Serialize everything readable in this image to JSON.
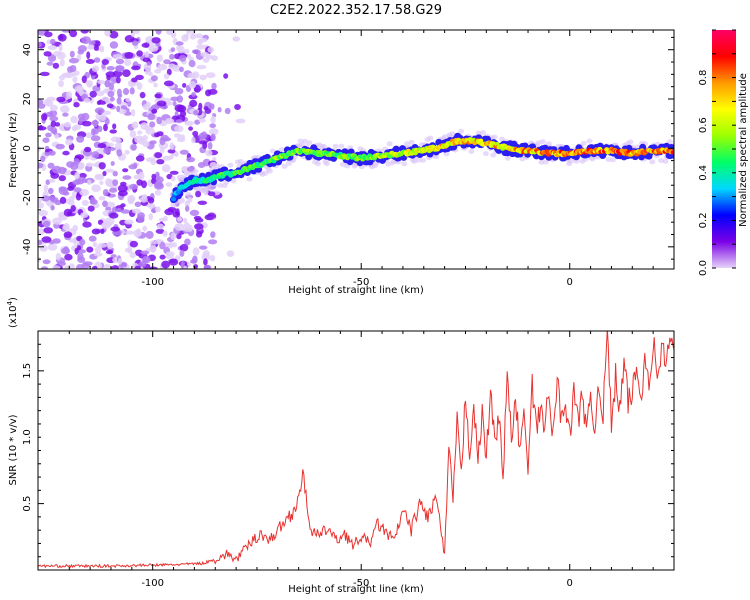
{
  "title": "C2E2.2022.352.17.58.G29",
  "colors": {
    "snr_line": "#e8322f",
    "noise_dot": "#a14cf0",
    "axis": "#000000"
  },
  "chart_data": [
    {
      "type": "heatmap",
      "xlabel": "Height of straight line (km)",
      "ylabel": "Frequency (Hz)",
      "xlim": [
        -127.5,
        25
      ],
      "ylim": [
        -49,
        48
      ],
      "x_ticks": [
        -100,
        -50,
        0
      ],
      "y_ticks": [
        40,
        20,
        0,
        -20,
        -40
      ],
      "noise_region_x": [
        -127.5,
        -85
      ],
      "ridge": {
        "x": [
          -95,
          -93,
          -90,
          -87,
          -84,
          -80,
          -75,
          -70,
          -65,
          -60,
          -55,
          -50,
          -45,
          -40,
          -35,
          -30,
          -27,
          -24,
          -20,
          -15,
          -10,
          -5,
          0,
          5,
          10,
          15,
          20,
          25
        ],
        "y": [
          -20,
          -16,
          -13,
          -13,
          -11,
          -10,
          -7,
          -4,
          -1,
          -2,
          -3,
          -4,
          -3,
          -2,
          -1,
          1,
          3,
          3,
          2,
          0,
          -1,
          -2,
          -2,
          -1,
          -1,
          -2,
          -1,
          -1
        ],
        "amplitude": [
          0.3,
          0.4,
          0.45,
          0.45,
          0.5,
          0.5,
          0.5,
          0.55,
          0.55,
          0.55,
          0.55,
          0.55,
          0.6,
          0.65,
          0.7,
          0.75,
          0.75,
          0.75,
          0.75,
          0.75,
          0.8,
          0.8,
          0.85,
          0.85,
          0.85,
          0.85,
          0.85,
          0.85
        ]
      },
      "colorbar": {
        "label": "Normalized spectral amplitude",
        "range": [
          0,
          1
        ],
        "ticks": [
          "0.0",
          "0.2",
          "0.4",
          "0.6",
          "0.8"
        ],
        "stops": [
          "#e6d3f7",
          "#7a00e6",
          "#0000ff",
          "#00d8ff",
          "#00ff66",
          "#9bff00",
          "#ffff00",
          "#ff9a00",
          "#ff0000",
          "#ff0066"
        ]
      }
    },
    {
      "type": "line",
      "xlabel": "Height of straight line (km)",
      "ylabel": "SNR (10 * v/v)",
      "y_multiplier": "(x10",
      "y_multiplier_exp": "4",
      "y_multiplier_close": ")",
      "xlim": [
        -127.5,
        25
      ],
      "ylim": [
        0,
        1.8
      ],
      "x_ticks": [
        -100,
        -50,
        0
      ],
      "y_ticks": [
        "0.5",
        "1.0",
        "1.5"
      ],
      "series": [
        {
          "x": [
            -127.5,
            -110,
            -95,
            -88,
            -85,
            -82,
            -80,
            -78,
            -76,
            -74,
            -72,
            -70,
            -68,
            -66,
            -64,
            -63,
            -62,
            -60,
            -58,
            -56,
            -54,
            -52,
            -50,
            -48,
            -46,
            -44,
            -42,
            -40,
            -38,
            -36,
            -34,
            -32,
            -30,
            -29,
            -28,
            -27,
            -26,
            -25,
            -24,
            -23,
            -22,
            -21,
            -20,
            -19,
            -18,
            -17,
            -16,
            -15,
            -14,
            -13,
            -12,
            -11,
            -10,
            -9,
            -8,
            -7,
            -6,
            -5,
            -4,
            -3,
            -2,
            -1,
            0,
            1,
            2,
            3,
            4,
            5,
            6,
            7,
            8,
            9,
            10,
            11,
            12,
            13,
            14,
            15,
            16,
            17,
            18,
            19,
            20,
            21,
            22,
            23,
            24,
            25
          ],
          "y": [
            0.03,
            0.03,
            0.04,
            0.05,
            0.08,
            0.12,
            0.08,
            0.15,
            0.22,
            0.28,
            0.22,
            0.3,
            0.38,
            0.45,
            0.7,
            0.5,
            0.3,
            0.25,
            0.32,
            0.22,
            0.28,
            0.18,
            0.25,
            0.2,
            0.35,
            0.28,
            0.22,
            0.45,
            0.3,
            0.5,
            0.4,
            0.55,
            0.1,
            0.9,
            0.55,
            1.1,
            0.7,
            1.32,
            0.9,
            1.25,
            0.8,
            1.18,
            0.85,
            1.35,
            0.95,
            1.2,
            0.7,
            1.45,
            1.0,
            1.25,
            0.95,
            1.15,
            0.75,
            1.38,
            1.05,
            1.22,
            1.1,
            1.3,
            1.0,
            1.45,
            1.12,
            1.28,
            1.0,
            1.35,
            1.1,
            1.4,
            1.0,
            1.3,
            1.05,
            1.45,
            1.15,
            1.8,
            1.1,
            1.45,
            1.2,
            1.55,
            1.25,
            1.35,
            1.5,
            1.3,
            1.6,
            1.45,
            1.7,
            1.5,
            1.65,
            1.58,
            1.72,
            1.62
          ]
        }
      ]
    }
  ]
}
